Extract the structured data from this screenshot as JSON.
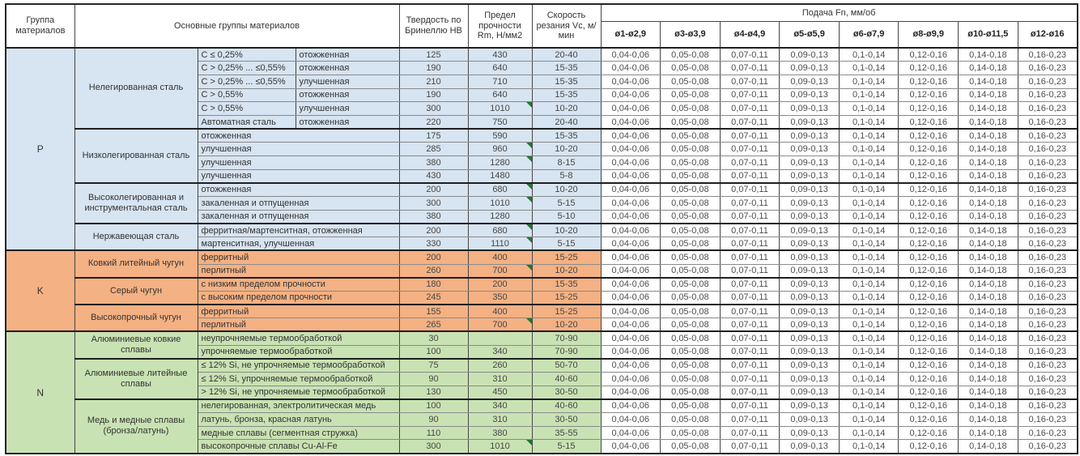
{
  "header": {
    "col_group": "Группа материалов",
    "col_main": "Основные группы материалов",
    "col_hb": "Твердость по Бринеллю HB",
    "col_rm": "Предел прочности Rm, Н/мм2",
    "col_vc": "Скорость резания Vc, м/мин",
    "col_feed": "Подача Fn, мм/об",
    "feed_cols": [
      "ø1-ø2,9",
      "ø3-ø3,9",
      "ø4-ø4,9",
      "ø5-ø5,9",
      "ø6-ø7,9",
      "ø8-ø9,9",
      "ø10-ø11,5",
      "ø12-ø16"
    ]
  },
  "feed_values": [
    "0,04-0,06",
    "0,05-0,08",
    "0,07-0,11",
    "0,09-0,13",
    "0,1-0,14",
    "0,12-0,16",
    "0,14-0,18",
    "0,16-0,23"
  ],
  "colors": {
    "group_p": "#d7e4f1",
    "group_k": "#f4b183",
    "group_n": "#c9e2b3",
    "flag_marker": "#1e7a2e"
  },
  "groups": [
    {
      "letter": "P",
      "color": "#d7e4f1",
      "subgroups": [
        {
          "name": "Нелегированная сталь",
          "rows": [
            {
              "spec": "C ≤ 0,25%",
              "state": "отожженная",
              "hb": "125",
              "rm": "430",
              "vc": "20-40"
            },
            {
              "spec": "C > 0,25% ... ≤0,55%",
              "state": "отожженная",
              "hb": "190",
              "rm": "640",
              "vc": "15-35"
            },
            {
              "spec": "C > 0,25% ... ≤0,55%",
              "state": "улучшенная",
              "hb": "210",
              "rm": "710",
              "vc": "15-35"
            },
            {
              "spec": "C > 0,55%",
              "state": "отожженная",
              "hb": "190",
              "rm": "640",
              "vc": "15-35"
            },
            {
              "spec": "C > 0,55%",
              "state": "улучшенная",
              "hb": "300",
              "rm": "1010",
              "vc": "10-20",
              "flag": true
            },
            {
              "spec": "Автоматная сталь",
              "state": "отожженная",
              "hb": "220",
              "rm": "750",
              "vc": "20-40"
            }
          ]
        },
        {
          "name": "Низколегированная сталь",
          "rows": [
            {
              "desc": "отожженная",
              "hb": "175",
              "rm": "590",
              "vc": "15-35"
            },
            {
              "desc": "улучшенная",
              "hb": "285",
              "rm": "960",
              "vc": "10-20",
              "flag": true
            },
            {
              "desc": "улучшенная",
              "hb": "380",
              "rm": "1280",
              "vc": "8-15",
              "flag": true
            },
            {
              "desc": "улучшенная",
              "hb": "430",
              "rm": "1480",
              "vc": "5-8"
            }
          ]
        },
        {
          "name": "Высоколегированная и инструментальная сталь",
          "rows": [
            {
              "desc": "отожженная",
              "hb": "200",
              "rm": "680",
              "vc": "10-20",
              "flag": true
            },
            {
              "desc": "закаленная и отпущенная",
              "hb": "300",
              "rm": "1010",
              "vc": "5-15",
              "flag": true
            },
            {
              "desc": "закаленная и отпущенная",
              "hb": "380",
              "rm": "1280",
              "vc": "5-10"
            }
          ]
        },
        {
          "name": "Нержавеющая сталь",
          "rows": [
            {
              "desc": "ферритная/мартенситная, отожженная",
              "hb": "200",
              "rm": "680",
              "vc": "10-20",
              "flag": true
            },
            {
              "desc": "мартенситная, улучшенная",
              "hb": "330",
              "rm": "1110",
              "vc": "5-15",
              "flag": true
            }
          ]
        }
      ]
    },
    {
      "letter": "K",
      "color": "#f4b183",
      "subgroups": [
        {
          "name": "Ковкий литейный чугун",
          "rows": [
            {
              "desc": "ферритный",
              "hb": "200",
              "rm": "400",
              "vc": "15-25"
            },
            {
              "desc": "перлитный",
              "hb": "260",
              "rm": "700",
              "vc": "10-20",
              "flag": true
            }
          ]
        },
        {
          "name": "Серый чугун",
          "rows": [
            {
              "desc": "с низким пределом прочности",
              "hb": "180",
              "rm": "200",
              "vc": "15-35"
            },
            {
              "desc": "с высоким пределом прочности",
              "hb": "245",
              "rm": "350",
              "vc": "15-25"
            }
          ]
        },
        {
          "name": "Высокопрочный чугун",
          "rows": [
            {
              "desc": "ферритный",
              "hb": "155",
              "rm": "400",
              "vc": "15-25"
            },
            {
              "desc": "перлитный",
              "hb": "265",
              "rm": "700",
              "vc": "10-20",
              "flag": true
            }
          ]
        }
      ]
    },
    {
      "letter": "N",
      "color": "#c9e2b3",
      "subgroups": [
        {
          "name": "Алюминиевые ковкие сплавы",
          "rows": [
            {
              "desc": "неупрочняемые термообработкой",
              "hb": "30",
              "rm": "",
              "vc": "70-90"
            },
            {
              "desc": "упрочняемые термообработкой",
              "hb": "100",
              "rm": "340",
              "vc": "70-90"
            }
          ]
        },
        {
          "name": "Алюминиевые литейные сплавы",
          "rows": [
            {
              "desc": "≤ 12% Si, не упрочняемые термообработкой",
              "hb": "75",
              "rm": "260",
              "vc": "50-70"
            },
            {
              "desc": "≤ 12% Si, упрочняемые термообработкой",
              "hb": "90",
              "rm": "310",
              "vc": "40-60"
            },
            {
              "desc": "> 12% Si, не упрочняемые термообработкой",
              "hb": "130",
              "rm": "450",
              "vc": "30-50"
            }
          ]
        },
        {
          "name": "Медь и медные сплавы (бронза/латунь)",
          "rows": [
            {
              "desc": "нелегированная, электролитическая медь",
              "hb": "100",
              "rm": "340",
              "vc": "40-60"
            },
            {
              "desc": "латунь, бронза, красная латунь",
              "hb": "90",
              "rm": "310",
              "vc": "30-50"
            },
            {
              "desc": "медные сплавы (сегментная стружка)",
              "hb": "110",
              "rm": "380",
              "vc": "35-55"
            },
            {
              "desc": "высокопрочные сплавы Cu-Al-Fe",
              "hb": "300",
              "rm": "1010",
              "vc": "5-15",
              "flag": true
            }
          ]
        }
      ]
    }
  ]
}
